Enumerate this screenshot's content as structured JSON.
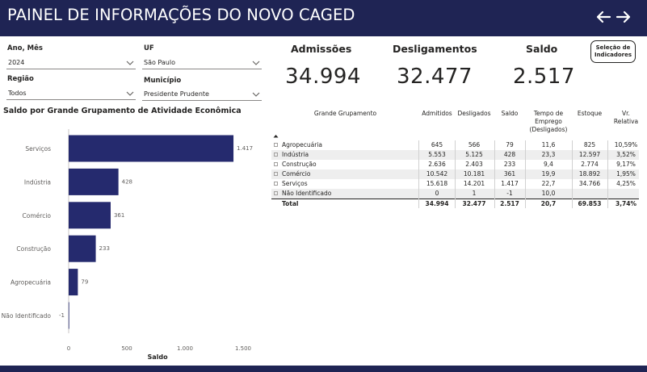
{
  "header": {
    "title": "PAINEL DE INFORMAÇÕES DO NOVO CAGED"
  },
  "filters": {
    "ano_mes": {
      "label": "Ano, Mês",
      "value": "2024"
    },
    "uf": {
      "label": "UF",
      "value": "São Paulo"
    },
    "regiao": {
      "label": "Região",
      "value": "Todos"
    },
    "municipio": {
      "label": "Município",
      "value": "Presidente Prudente"
    }
  },
  "kpis": {
    "admissoes": {
      "label": "Admissões",
      "value": "34.994"
    },
    "desligamentos": {
      "label": "Desligamentos",
      "value": "32.477"
    },
    "saldo": {
      "label": "Saldo",
      "value": "2.517"
    }
  },
  "selection_button": {
    "line1": "Seleção de",
    "line2": "Indicadores"
  },
  "chart_title": "Saldo por Grande Grupamento de Atividade Econômica",
  "chart_data": {
    "type": "bar",
    "orientation": "horizontal",
    "categories": [
      "Serviços",
      "Indústria",
      "Comércio",
      "Construção",
      "Agropecuária",
      "Não Identificado"
    ],
    "values": [
      1417,
      428,
      361,
      233,
      79,
      -1
    ],
    "labels": [
      "1.417",
      "428",
      "361",
      "233",
      "79",
      "-1"
    ],
    "xlabel": "Saldo",
    "xlim": [
      -20,
      1500
    ],
    "xticks": [
      0,
      500,
      1000,
      1500
    ],
    "xtick_labels": [
      "0",
      "500",
      "1.000",
      "1.500"
    ],
    "bar_color": "#252a6e"
  },
  "table": {
    "headers": {
      "grupo": "Grande Grupamento",
      "admitidos": "Admitidos",
      "desligados": "Desligados",
      "saldo": "Saldo",
      "tempo": [
        "Tempo de",
        "Emprego",
        "(Desligados)"
      ],
      "estoque": "Estoque",
      "vr": [
        "Vr.",
        "Relativa"
      ]
    },
    "rows": [
      {
        "grupo": "Agropecuária",
        "admitidos": "645",
        "desligados": "566",
        "saldo": "79",
        "tempo": "11,6",
        "estoque": "825",
        "vr": "10,59%"
      },
      {
        "grupo": "Indústria",
        "admitidos": "5.553",
        "desligados": "5.125",
        "saldo": "428",
        "tempo": "23,3",
        "estoque": "12.597",
        "vr": "3,52%"
      },
      {
        "grupo": "Construção",
        "admitidos": "2.636",
        "desligados": "2.403",
        "saldo": "233",
        "tempo": "9,4",
        "estoque": "2.774",
        "vr": "9,17%"
      },
      {
        "grupo": "Comércio",
        "admitidos": "10.542",
        "desligados": "10.181",
        "saldo": "361",
        "tempo": "19,9",
        "estoque": "18.892",
        "vr": "1,95%"
      },
      {
        "grupo": "Serviços",
        "admitidos": "15.618",
        "desligados": "14.201",
        "saldo": "1.417",
        "tempo": "22,7",
        "estoque": "34.766",
        "vr": "4,25%"
      },
      {
        "grupo": "Não Identificado",
        "admitidos": "0",
        "desligados": "1",
        "saldo": "-1",
        "tempo": "10,0",
        "estoque": "",
        "vr": ""
      }
    ],
    "total": {
      "grupo": "Total",
      "admitidos": "34.994",
      "desligados": "32.477",
      "saldo": "2.517",
      "tempo": "20,7",
      "estoque": "69.853",
      "vr": "3,74%"
    }
  }
}
